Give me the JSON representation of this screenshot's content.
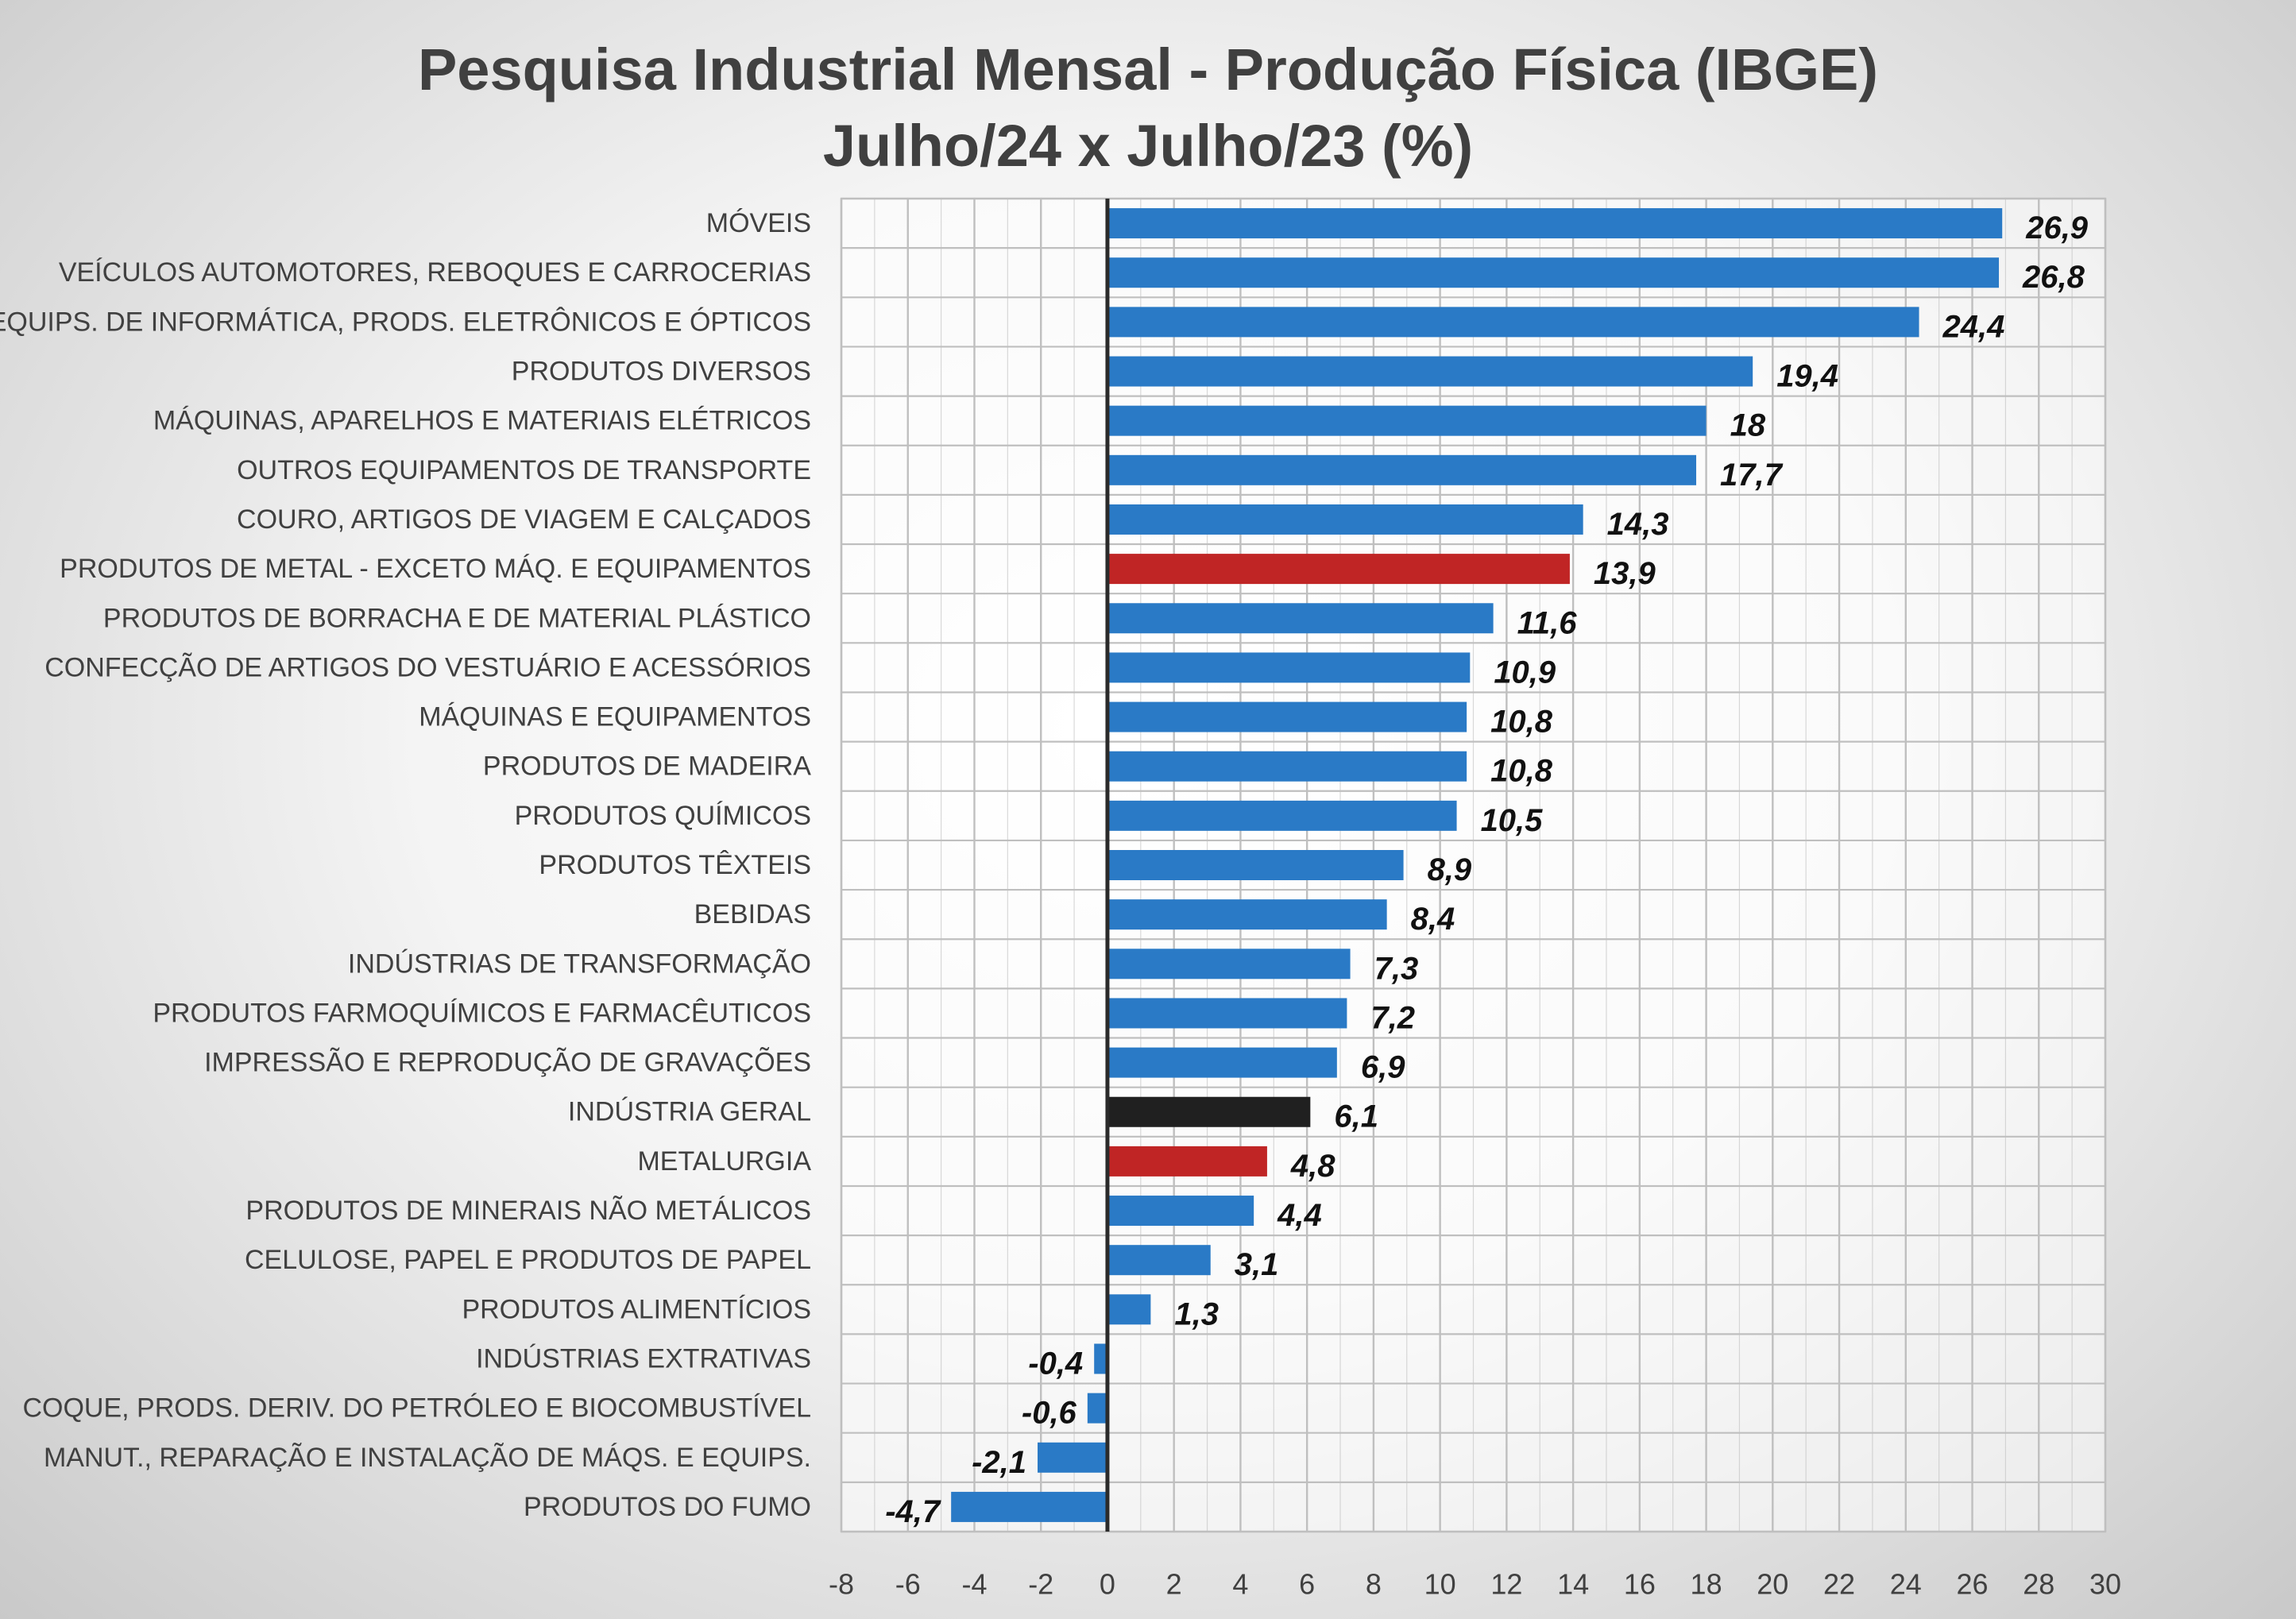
{
  "chart_data": {
    "type": "bar",
    "orientation": "horizontal",
    "title": "Pesquisa Industrial Mensal - Produção Física (IBGE)",
    "subtitle": "Julho/24 x Julho/23 (%)",
    "xlabel": "",
    "ylabel": "",
    "xlim": [
      -8,
      30
    ],
    "xticks": [
      -8,
      -6,
      -4,
      -2,
      0,
      2,
      4,
      6,
      8,
      10,
      12,
      14,
      16,
      18,
      20,
      22,
      24,
      26,
      28,
      30
    ],
    "grid": true,
    "legend": "none",
    "categories": [
      "MÓVEIS",
      "VEÍCULOS AUTOMOTORES, REBOQUES E CARROCERIAS",
      "EQUIPS. DE INFORMÁTICA, PRODS. ELETRÔNICOS E ÓPTICOS",
      "PRODUTOS DIVERSOS",
      "MÁQUINAS, APARELHOS E MATERIAIS ELÉTRICOS",
      "OUTROS EQUIPAMENTOS DE TRANSPORTE",
      "COURO, ARTIGOS DE VIAGEM E CALÇADOS",
      "PRODUTOS DE METAL - EXCETO MÁQ. E EQUIPAMENTOS",
      "PRODUTOS DE BORRACHA E DE MATERIAL PLÁSTICO",
      "CONFECÇÃO DE ARTIGOS DO VESTUÁRIO E ACESSÓRIOS",
      "MÁQUINAS E EQUIPAMENTOS",
      "PRODUTOS DE MADEIRA",
      "PRODUTOS QUÍMICOS",
      "PRODUTOS TÊXTEIS",
      "BEBIDAS",
      "INDÚSTRIAS DE TRANSFORMAÇÃO",
      "PRODUTOS FARMOQUÍMICOS E FARMACÊUTICOS",
      "IMPRESSÃO E REPRODUÇÃO DE GRAVAÇÕES",
      "INDÚSTRIA GERAL",
      "METALURGIA",
      "PRODUTOS DE MINERAIS NÃO METÁLICOS",
      "CELULOSE, PAPEL E PRODUTOS DE PAPEL",
      "PRODUTOS ALIMENTÍCIOS",
      "INDÚSTRIAS EXTRATIVAS",
      "COQUE, PRODS. DERIV. DO PETRÓLEO E BIOCOMBUSTÍVEL",
      "MANUT., REPARAÇÃO E INSTALAÇÃO DE MÁQS. E EQUIPS.",
      "PRODUTOS DO FUMO"
    ],
    "values": [
      26.9,
      26.8,
      24.4,
      19.4,
      18,
      17.7,
      14.3,
      13.9,
      11.6,
      10.9,
      10.8,
      10.8,
      10.5,
      8.9,
      8.4,
      7.3,
      7.2,
      6.9,
      6.1,
      4.8,
      4.4,
      3.1,
      1.3,
      -0.4,
      -0.6,
      -2.1,
      -4.7
    ],
    "value_labels": [
      "26,9",
      "26,8",
      "24,4",
      "19,4",
      "18",
      "17,7",
      "14,3",
      "13,9",
      "11,6",
      "10,9",
      "10,8",
      "10,8",
      "10,5",
      "8,9",
      "8,4",
      "7,3",
      "7,2",
      "6,9",
      "6,1",
      "4,8",
      "4,4",
      "3,1",
      "1,3",
      "-0,4",
      "-0,6",
      "-2,1",
      "-4,7"
    ],
    "bar_colors": [
      "#2a7ac6",
      "#2a7ac6",
      "#2a7ac6",
      "#2a7ac6",
      "#2a7ac6",
      "#2a7ac6",
      "#2a7ac6",
      "#c02525",
      "#2a7ac6",
      "#2a7ac6",
      "#2a7ac6",
      "#2a7ac6",
      "#2a7ac6",
      "#2a7ac6",
      "#2a7ac6",
      "#2a7ac6",
      "#2a7ac6",
      "#2a7ac6",
      "#202020",
      "#c02525",
      "#2a7ac6",
      "#2a7ac6",
      "#2a7ac6",
      "#2a7ac6",
      "#2a7ac6",
      "#2a7ac6",
      "#2a7ac6"
    ],
    "colors": {
      "default_bar": "#2a7ac6",
      "highlight_bar": "#c02525",
      "total_bar": "#202020",
      "grid": "#bfbfbf",
      "axis": "#2b2b2b",
      "text": "#404040",
      "data_label": "#111111"
    }
  }
}
